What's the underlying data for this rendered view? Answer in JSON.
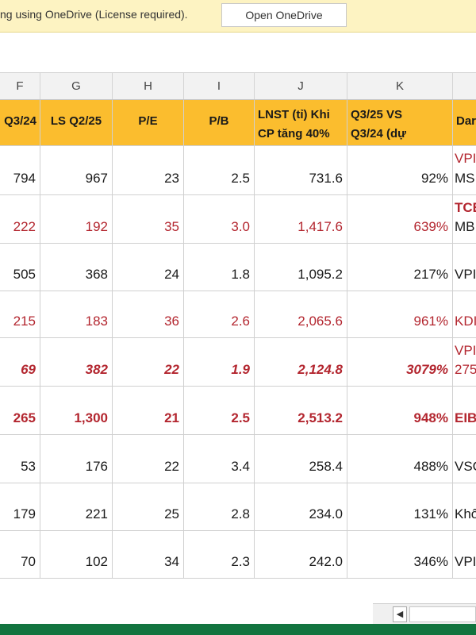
{
  "infobar": {
    "message": "ng using OneDrive (License required).",
    "button_label": "Open OneDrive"
  },
  "column_letters": [
    "F",
    "G",
    "H",
    "I",
    "J",
    "K"
  ],
  "header_row": {
    "f": "Q3/24",
    "g": "LS Q2/25",
    "h": "P/E",
    "i": "P/B",
    "j_line1": "LNST (tỉ) Khi",
    "j_line2": "CP tăng 40%",
    "k_line1": "Q3/25 VS",
    "k_line2": "Q3/24 (dự",
    "l": "Dar"
  },
  "rows": [
    {
      "f": "794",
      "g": "967",
      "h": "23",
      "i": "2.5",
      "j": "731.6",
      "k": "92%",
      "l1": "VPI",
      "l2": "MS",
      "style": "normal"
    },
    {
      "f": "222",
      "g": "192",
      "h": "35",
      "i": "3.0",
      "j": "1,417.6",
      "k": "639%",
      "l1": "TCE",
      "l2": "MB",
      "style": "red"
    },
    {
      "f": "505",
      "g": "368",
      "h": "24",
      "i": "1.8",
      "j": "1,095.2",
      "k": "217%",
      "l1": "",
      "l2": "VPI",
      "style": "normal"
    },
    {
      "f": "215",
      "g": "183",
      "h": "36",
      "i": "2.6",
      "j": "2,065.6",
      "k": "961%",
      "l1": "",
      "l2": "KDI",
      "style": "red"
    },
    {
      "f": "69",
      "g": "382",
      "h": "22",
      "i": "1.9",
      "j": "2,124.8",
      "k": "3079%",
      "l1": "VPI",
      "l2": "275",
      "style": "red-bi"
    },
    {
      "f": "265",
      "g": "1,300",
      "h": "21",
      "i": "2.5",
      "j": "2,513.2",
      "k": "948%",
      "l1": "",
      "l2": "EIB",
      "style": "red-b"
    },
    {
      "f": "53",
      "g": "176",
      "h": "22",
      "i": "3.4",
      "j": "258.4",
      "k": "488%",
      "l1": "",
      "l2": "VSC",
      "style": "normal"
    },
    {
      "f": "179",
      "g": "221",
      "h": "25",
      "i": "2.8",
      "j": "234.0",
      "k": "131%",
      "l1": "",
      "l2": "Khô",
      "style": "normal"
    },
    {
      "f": "70",
      "g": "102",
      "h": "34",
      "i": "2.3",
      "j": "242.0",
      "k": "346%",
      "l1": "",
      "l2": "VPI",
      "style": "normal"
    }
  ],
  "colors": {
    "header_fill": "#fbbd2e",
    "red_text": "#b3262f",
    "infobar_bg": "#fdf3c2",
    "excel_green": "#12743f"
  }
}
